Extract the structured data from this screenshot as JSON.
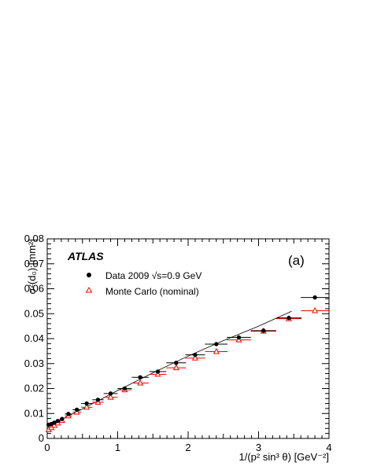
{
  "chart_data": {
    "type": "scatter",
    "experiment_label": "ATLAS",
    "panel_label": "(a)",
    "ylabel": "σ²(d₀) [mm²]",
    "xlabel": "1/(p² sin³ θ)  [GeV⁻²]",
    "xlim": [
      0,
      4
    ],
    "ylim": [
      0,
      0.08
    ],
    "xticks": [
      "0",
      "0.5",
      "1",
      "1.5",
      "2",
      "2.5",
      "3",
      "3.5",
      "4"
    ],
    "yticks": [
      "0",
      "0.01",
      "0.02",
      "0.03",
      "0.04",
      "0.05",
      "0.06",
      "0.07",
      "0.08"
    ],
    "grid": false,
    "legend_position": "top-left",
    "series": [
      {
        "name": "Data 2009 √s=0.9 GeV",
        "marker": "filled-circle",
        "color": "#000000",
        "points": [
          {
            "x": 0.02,
            "y": 0.0055,
            "xerr": 0.02
          },
          {
            "x": 0.06,
            "y": 0.0058,
            "xerr": 0.02
          },
          {
            "x": 0.1,
            "y": 0.0063,
            "xerr": 0.02
          },
          {
            "x": 0.15,
            "y": 0.007,
            "xerr": 0.03
          },
          {
            "x": 0.21,
            "y": 0.0078,
            "xerr": 0.03
          },
          {
            "x": 0.3,
            "y": 0.0098,
            "xerr": 0.05
          },
          {
            "x": 0.42,
            "y": 0.0115,
            "xerr": 0.06
          },
          {
            "x": 0.56,
            "y": 0.014,
            "xerr": 0.08
          },
          {
            "x": 0.72,
            "y": 0.0155,
            "xerr": 0.08
          },
          {
            "x": 0.9,
            "y": 0.018,
            "xerr": 0.1
          },
          {
            "x": 1.1,
            "y": 0.02,
            "xerr": 0.1
          },
          {
            "x": 1.32,
            "y": 0.0245,
            "xerr": 0.12
          },
          {
            "x": 1.57,
            "y": 0.0268,
            "xerr": 0.12
          },
          {
            "x": 1.83,
            "y": 0.0303,
            "xerr": 0.14
          },
          {
            "x": 2.1,
            "y": 0.0335,
            "xerr": 0.14
          },
          {
            "x": 2.4,
            "y": 0.0378,
            "xerr": 0.16
          },
          {
            "x": 2.72,
            "y": 0.0405,
            "xerr": 0.17
          },
          {
            "x": 3.07,
            "y": 0.0432,
            "xerr": 0.18
          },
          {
            "x": 3.43,
            "y": 0.0483,
            "xerr": 0.18
          },
          {
            "x": 3.8,
            "y": 0.0565,
            "xerr": 0.2
          }
        ]
      },
      {
        "name": "Monte Carlo  (nominal)",
        "marker": "open-triangle",
        "color": "#ff0000",
        "points": [
          {
            "x": 0.02,
            "y": 0.0035,
            "xerr": 0.02
          },
          {
            "x": 0.06,
            "y": 0.0043,
            "xerr": 0.02
          },
          {
            "x": 0.1,
            "y": 0.0052,
            "xerr": 0.02
          },
          {
            "x": 0.15,
            "y": 0.0062,
            "xerr": 0.03
          },
          {
            "x": 0.21,
            "y": 0.0072,
            "xerr": 0.03
          },
          {
            "x": 0.3,
            "y": 0.009,
            "xerr": 0.05
          },
          {
            "x": 0.42,
            "y": 0.0105,
            "xerr": 0.06
          },
          {
            "x": 0.56,
            "y": 0.0125,
            "xerr": 0.08
          },
          {
            "x": 0.72,
            "y": 0.0145,
            "xerr": 0.08
          },
          {
            "x": 0.9,
            "y": 0.0165,
            "xerr": 0.1
          },
          {
            "x": 1.1,
            "y": 0.0195,
            "xerr": 0.1
          },
          {
            "x": 1.32,
            "y": 0.0222,
            "xerr": 0.12
          },
          {
            "x": 1.57,
            "y": 0.0257,
            "xerr": 0.12
          },
          {
            "x": 1.83,
            "y": 0.0283,
            "xerr": 0.14
          },
          {
            "x": 2.1,
            "y": 0.0322,
            "xerr": 0.14
          },
          {
            "x": 2.4,
            "y": 0.0348,
            "xerr": 0.16
          },
          {
            "x": 2.72,
            "y": 0.0395,
            "xerr": 0.17
          },
          {
            "x": 3.07,
            "y": 0.043,
            "xerr": 0.18
          },
          {
            "x": 3.43,
            "y": 0.048,
            "xerr": 0.18
          },
          {
            "x": 3.8,
            "y": 0.0512,
            "xerr": 0.2
          }
        ]
      }
    ],
    "fit_line": {
      "color": "#000000",
      "points": [
        [
          0,
          0.0058
        ],
        [
          0.2,
          0.0076
        ],
        [
          0.5,
          0.0118
        ],
        [
          1.0,
          0.0192
        ],
        [
          1.5,
          0.0263
        ],
        [
          2.0,
          0.033
        ],
        [
          2.5,
          0.0392
        ],
        [
          3.0,
          0.045
        ],
        [
          3.47,
          0.051
        ]
      ]
    }
  }
}
